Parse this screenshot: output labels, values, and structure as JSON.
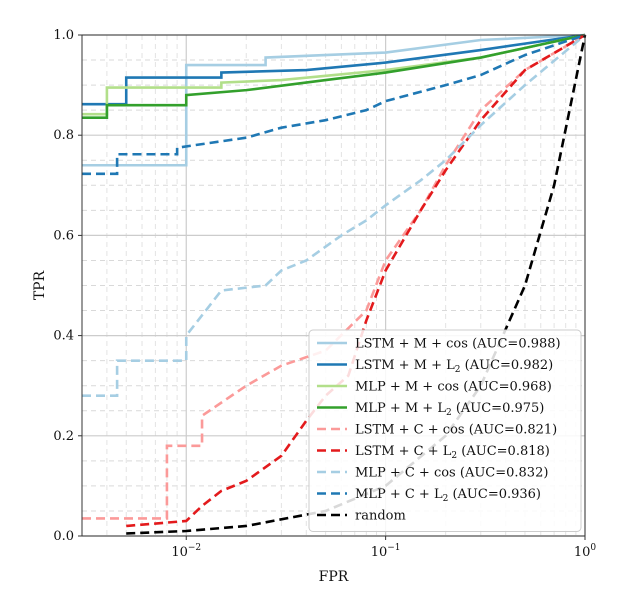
{
  "chart_data": {
    "type": "line",
    "title": "",
    "xlabel": "FPR",
    "ylabel": "TPR",
    "xscale": "log",
    "xlim": [
      0.003,
      1.0
    ],
    "ylim": [
      0.0,
      1.0
    ],
    "grid": true,
    "legend_position": "bottom-right",
    "x_ticks": [
      {
        "base": "10",
        "exp": "−2",
        "value": 0.01
      },
      {
        "base": "10",
        "exp": "−1",
        "value": 0.1
      },
      {
        "base": "10",
        "exp": "0",
        "value": 1.0
      }
    ],
    "y_ticks": [
      "0.0",
      "0.2",
      "0.4",
      "0.6",
      "0.8",
      "1.0"
    ],
    "y_tick_values": [
      0.0,
      0.2,
      0.4,
      0.6,
      0.8,
      1.0
    ],
    "series": [
      {
        "name": "LSTM + M + cos",
        "label_prefix": "LSTM + M + cos",
        "sub": "",
        "label_suffix": " (AUC=0.988)",
        "auc": 0.988,
        "color": "#a6cee3",
        "dash": "solid",
        "points": [
          [
            0.003,
            0.74
          ],
          [
            0.01,
            0.74
          ],
          [
            0.01,
            0.94
          ],
          [
            0.025,
            0.94
          ],
          [
            0.025,
            0.955
          ],
          [
            0.1,
            0.965
          ],
          [
            0.3,
            0.99
          ],
          [
            1.0,
            1.0
          ]
        ]
      },
      {
        "name": "LSTM + M + L2",
        "label_prefix": "LSTM + M + L",
        "sub": "2",
        "label_suffix": " (AUC=0.982)",
        "auc": 0.982,
        "color": "#1f78b4",
        "dash": "solid",
        "points": [
          [
            0.003,
            0.862
          ],
          [
            0.005,
            0.862
          ],
          [
            0.005,
            0.915
          ],
          [
            0.015,
            0.915
          ],
          [
            0.015,
            0.925
          ],
          [
            0.04,
            0.93
          ],
          [
            0.1,
            0.945
          ],
          [
            0.3,
            0.97
          ],
          [
            1.0,
            1.0
          ]
        ]
      },
      {
        "name": "MLP + M + cos",
        "label_prefix": "MLP + M + cos",
        "sub": "",
        "label_suffix": " (AUC=0.968)",
        "auc": 0.968,
        "color": "#b2df8a",
        "dash": "solid",
        "points": [
          [
            0.003,
            0.842
          ],
          [
            0.004,
            0.842
          ],
          [
            0.004,
            0.895
          ],
          [
            0.015,
            0.895
          ],
          [
            0.015,
            0.905
          ],
          [
            0.03,
            0.91
          ],
          [
            0.1,
            0.93
          ],
          [
            0.3,
            0.955
          ],
          [
            1.0,
            1.0
          ]
        ]
      },
      {
        "name": "MLP + M + L2",
        "label_prefix": "MLP + M + L",
        "sub": "2",
        "label_suffix": " (AUC=0.975)",
        "auc": 0.975,
        "color": "#33a02c",
        "dash": "solid",
        "points": [
          [
            0.003,
            0.835
          ],
          [
            0.004,
            0.835
          ],
          [
            0.004,
            0.86
          ],
          [
            0.01,
            0.86
          ],
          [
            0.01,
            0.88
          ],
          [
            0.02,
            0.89
          ],
          [
            0.05,
            0.91
          ],
          [
            0.1,
            0.925
          ],
          [
            0.3,
            0.955
          ],
          [
            1.0,
            1.0
          ]
        ]
      },
      {
        "name": "LSTM + C + cos",
        "label_prefix": "LSTM + C + cos",
        "sub": "",
        "label_suffix": " (AUC=0.821)",
        "auc": 0.821,
        "color": "#fb9a99",
        "dash": "dashed",
        "points": [
          [
            0.003,
            0.035
          ],
          [
            0.008,
            0.035
          ],
          [
            0.008,
            0.18
          ],
          [
            0.012,
            0.18
          ],
          [
            0.012,
            0.24
          ],
          [
            0.02,
            0.3
          ],
          [
            0.03,
            0.34
          ],
          [
            0.05,
            0.37
          ],
          [
            0.08,
            0.45
          ],
          [
            0.1,
            0.55
          ],
          [
            0.15,
            0.65
          ],
          [
            0.2,
            0.74
          ],
          [
            0.3,
            0.85
          ],
          [
            0.5,
            0.93
          ],
          [
            1.0,
            1.0
          ]
        ]
      },
      {
        "name": "LSTM + C + L2",
        "label_prefix": "LSTM + C + L",
        "sub": "2",
        "label_suffix": " (AUC=0.818)",
        "auc": 0.818,
        "color": "#e31a1c",
        "dash": "dashed",
        "points": [
          [
            0.005,
            0.02
          ],
          [
            0.01,
            0.03
          ],
          [
            0.012,
            0.06
          ],
          [
            0.015,
            0.09
          ],
          [
            0.02,
            0.11
          ],
          [
            0.03,
            0.16
          ],
          [
            0.04,
            0.23
          ],
          [
            0.05,
            0.28
          ],
          [
            0.065,
            0.32
          ],
          [
            0.08,
            0.43
          ],
          [
            0.1,
            0.53
          ],
          [
            0.15,
            0.65
          ],
          [
            0.2,
            0.73
          ],
          [
            0.3,
            0.83
          ],
          [
            0.5,
            0.93
          ],
          [
            1.0,
            1.0
          ]
        ]
      },
      {
        "name": "MLP + C + cos",
        "label_prefix": "MLP + C + cos",
        "sub": "",
        "label_suffix": " (AUC=0.832)",
        "auc": 0.832,
        "color": "#a6cee3",
        "dash": "dashed",
        "points": [
          [
            0.003,
            0.28
          ],
          [
            0.0045,
            0.28
          ],
          [
            0.0045,
            0.35
          ],
          [
            0.01,
            0.35
          ],
          [
            0.01,
            0.4
          ],
          [
            0.015,
            0.49
          ],
          [
            0.025,
            0.5
          ],
          [
            0.03,
            0.53
          ],
          [
            0.04,
            0.55
          ],
          [
            0.06,
            0.6
          ],
          [
            0.08,
            0.63
          ],
          [
            0.1,
            0.66
          ],
          [
            0.15,
            0.71
          ],
          [
            0.2,
            0.75
          ],
          [
            0.3,
            0.82
          ],
          [
            0.5,
            0.9
          ],
          [
            1.0,
            1.0
          ]
        ]
      },
      {
        "name": "MLP + C + L2",
        "label_prefix": "MLP + C + L",
        "sub": "2",
        "label_suffix": " (AUC=0.936)",
        "auc": 0.936,
        "color": "#1f78b4",
        "dash": "dashed",
        "points": [
          [
            0.003,
            0.723
          ],
          [
            0.0045,
            0.723
          ],
          [
            0.0045,
            0.762
          ],
          [
            0.009,
            0.762
          ],
          [
            0.009,
            0.775
          ],
          [
            0.02,
            0.795
          ],
          [
            0.03,
            0.815
          ],
          [
            0.05,
            0.83
          ],
          [
            0.08,
            0.85
          ],
          [
            0.1,
            0.868
          ],
          [
            0.2,
            0.9
          ],
          [
            0.3,
            0.92
          ],
          [
            0.5,
            0.96
          ],
          [
            1.0,
            1.0
          ]
        ]
      },
      {
        "name": "random",
        "label_prefix": "random",
        "sub": "",
        "label_suffix": "",
        "auc": null,
        "color": "#000000",
        "dash": "dashed",
        "points": [
          [
            0.005,
            0.005
          ],
          [
            0.01,
            0.01
          ],
          [
            0.02,
            0.02
          ],
          [
            0.05,
            0.05
          ],
          [
            0.1,
            0.1
          ],
          [
            0.2,
            0.2
          ],
          [
            0.3,
            0.3
          ],
          [
            0.5,
            0.5
          ],
          [
            0.7,
            0.7
          ],
          [
            1.0,
            1.0
          ]
        ]
      }
    ]
  }
}
